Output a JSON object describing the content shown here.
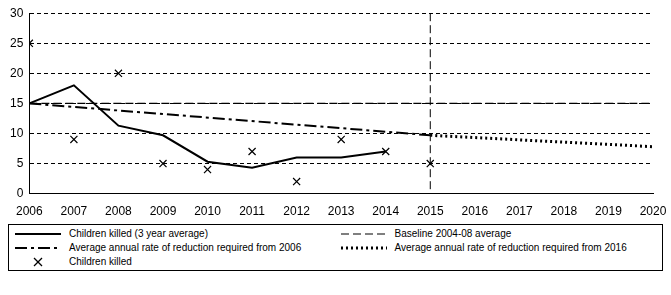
{
  "chart_data": {
    "type": "line",
    "xlim": [
      2006,
      2020
    ],
    "xticks": [
      2006,
      2007,
      2008,
      2009,
      2010,
      2011,
      2012,
      2013,
      2014,
      2015,
      2016,
      2017,
      2018,
      2019,
      2020
    ],
    "ylim": [
      0,
      30
    ],
    "yticks": [
      0,
      5,
      10,
      15,
      20,
      25,
      30
    ],
    "grid": true,
    "legend": "bottom",
    "series": [
      {
        "name": "Children killed (3 year average)",
        "color": "#000000",
        "line_style": "solid",
        "x": [
          2006,
          2007,
          2008,
          2009,
          2010,
          2011,
          2012,
          2013,
          2014
        ],
        "values": [
          15,
          18,
          11.3,
          9.7,
          5.3,
          4.3,
          6,
          6,
          7
        ]
      },
      {
        "name": "Baseline 2004-08 average",
        "color": "#000000",
        "line_style": "dashed",
        "x": [
          2006,
          2020
        ],
        "values": [
          15,
          15
        ]
      },
      {
        "name": "Average annual rate of reduction required from 2006",
        "color": "#000000",
        "line_style": "dashdot",
        "x": [
          2006,
          2015
        ],
        "values": [
          15,
          9.7
        ]
      },
      {
        "name": "Average annual rate of reduction required from 2016",
        "color": "#000000",
        "line_style": "dotted",
        "x": [
          2015,
          2020
        ],
        "values": [
          9.7,
          7.8
        ]
      },
      {
        "name": "Children killed",
        "color": "#000000",
        "type": "scatter",
        "marker": "x",
        "x": [
          2006,
          2007,
          2008,
          2009,
          2010,
          2011,
          2012,
          2013,
          2014,
          2015
        ],
        "values": [
          25,
          9,
          20,
          5,
          4,
          7,
          2,
          9,
          7,
          5
        ]
      }
    ],
    "annotations": [
      {
        "type": "vline",
        "x": 2015,
        "line_style": "dashed",
        "color": "#000000"
      }
    ]
  }
}
